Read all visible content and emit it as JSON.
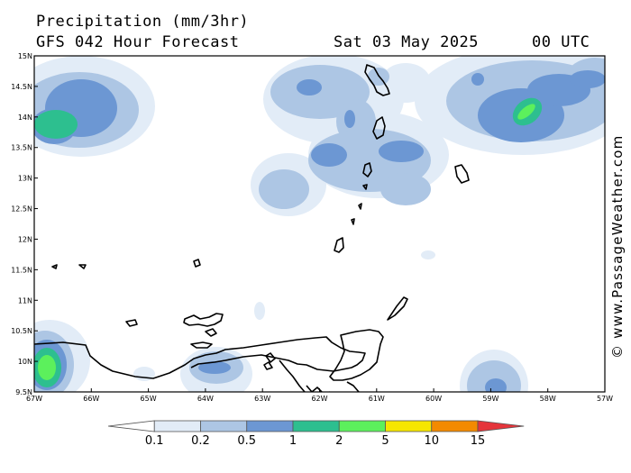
{
  "header": {
    "title": "Precipitation (mm/3hr)",
    "subtitle": "GFS 042 Hour Forecast",
    "date": "Sat 03 May 2025",
    "time": "00 UTC"
  },
  "credit": "© www.PassageWeather.com",
  "map": {
    "lat_labels": [
      "15N",
      "14.5N",
      "14N",
      "13.5N",
      "13N",
      "12.5N",
      "12N",
      "11.5N",
      "11N",
      "10.5N",
      "10N",
      "9.5N"
    ],
    "lon_labels": [
      "67W",
      "66W",
      "65W",
      "64W",
      "63W",
      "62W",
      "61W",
      "60W",
      "59W",
      "58W",
      "57W"
    ]
  },
  "colorbar": {
    "labels": [
      "0.1",
      "0.2",
      "0.5",
      "1",
      "2",
      "5",
      "10",
      "15"
    ],
    "colors": [
      "#ffffff",
      "#e2ecf7",
      "#adc6e4",
      "#6c97d3",
      "#2dbf8f",
      "#5cf05c",
      "#f6e600",
      "#f38a00",
      "#e5353b"
    ]
  },
  "legend_colors": {
    "0.1": "#e2ecf7",
    "0.2": "#adc6e4",
    "0.5": "#6c97d3",
    "1": "#2dbf8f",
    "2": "#5cf05c"
  }
}
